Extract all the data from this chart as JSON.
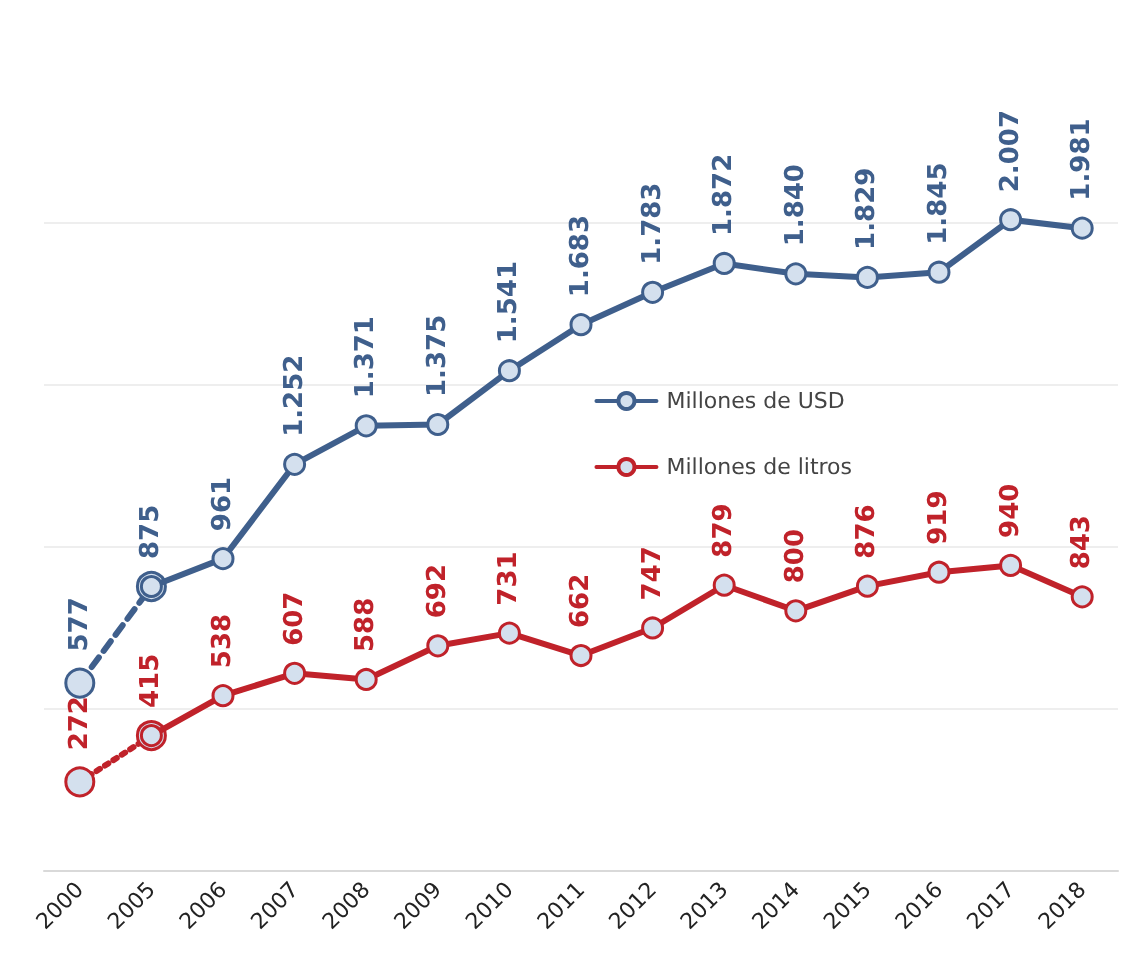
{
  "chart_data": {
    "type": "line",
    "categories": [
      "2000",
      "2005",
      "2006",
      "2007",
      "2008",
      "2009",
      "2010",
      "2011",
      "2012",
      "2013",
      "2014",
      "2015",
      "2016",
      "2017",
      "2018"
    ],
    "series": [
      {
        "name": "Millones de USD",
        "color": "#3f5f8c",
        "line_style": "solid",
        "values": [
          null,
          875,
          961,
          1252,
          1371,
          1375,
          1541,
          1683,
          1783,
          1872,
          1840,
          1829,
          1845,
          2007,
          1981
        ],
        "value_labels": [
          null,
          "875",
          "961",
          "1.252",
          "1.371",
          "1.375",
          "1.541",
          "1.683",
          "1.783",
          "1.872",
          "1.840",
          "1.829",
          "1.845",
          "2.007",
          "1.981"
        ]
      },
      {
        "color": "#3f5f8c",
        "line_style": "dashed",
        "values": [
          577,
          875,
          null,
          null,
          null,
          null,
          null,
          null,
          null,
          null,
          null,
          null,
          null,
          null,
          null
        ],
        "value_labels": [
          "577",
          null,
          null,
          null,
          null,
          null,
          null,
          null,
          null,
          null,
          null,
          null,
          null,
          null,
          null
        ]
      },
      {
        "name": "Millones de litros",
        "color": "#c0222a",
        "line_style": "solid",
        "values": [
          null,
          415,
          538,
          607,
          588,
          692,
          731,
          662,
          747,
          879,
          800,
          876,
          919,
          940,
          843
        ],
        "value_labels": [
          null,
          "415",
          "538",
          "607",
          "588",
          "692",
          "731",
          "662",
          "747",
          "879",
          "800",
          "876",
          "919",
          "940",
          "843"
        ]
      },
      {
        "color": "#c0222a",
        "line_style": "dotted",
        "values": [
          272,
          415,
          null,
          null,
          null,
          null,
          null,
          null,
          null,
          null,
          null,
          null,
          null,
          null,
          null
        ],
        "value_labels": [
          "272",
          null,
          null,
          null,
          null,
          null,
          null,
          null,
          null,
          null,
          null,
          null,
          null,
          null,
          null
        ]
      }
    ],
    "marker": "circle",
    "yticks": [
      {
        "value": 0,
        "label": null
      },
      {
        "value": 500,
        "label": null
      },
      {
        "value": 1000,
        "label": null
      },
      {
        "value": 1500,
        "label": null
      },
      {
        "value": 2000,
        "label": null
      }
    ],
    "grid": "y",
    "tick_labels": "x",
    "legend": "right"
  }
}
